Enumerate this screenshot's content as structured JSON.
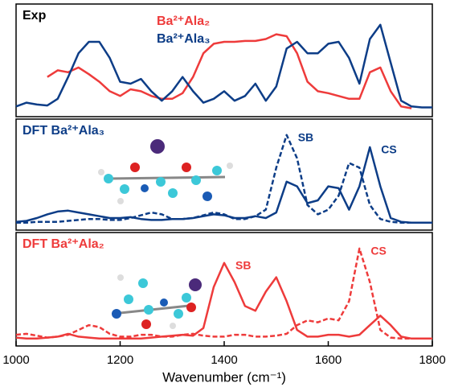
{
  "chart_data": [
    {
      "type": "line",
      "title": "Exp",
      "legend": "upper center",
      "xlim": [
        1000,
        1800
      ],
      "ylim": [
        0,
        1
      ],
      "x": [
        1000,
        1020,
        1040,
        1060,
        1080,
        1100,
        1120,
        1140,
        1160,
        1180,
        1200,
        1220,
        1240,
        1260,
        1280,
        1300,
        1320,
        1340,
        1360,
        1380,
        1400,
        1420,
        1440,
        1460,
        1480,
        1500,
        1520,
        1540,
        1560,
        1580,
        1600,
        1620,
        1640,
        1660,
        1680,
        1700,
        1720,
        1740,
        1760,
        1780,
        1800
      ],
      "series": [
        {
          "name": "Ba²⁺Ala₂",
          "color": "#ee3b3b",
          "dashed": false,
          "values": [
            null,
            null,
            null,
            0.35,
            0.42,
            0.4,
            0.45,
            0.38,
            0.3,
            0.2,
            0.15,
            0.22,
            0.2,
            0.15,
            0.12,
            0.12,
            0.18,
            0.35,
            0.6,
            0.7,
            0.72,
            0.72,
            0.73,
            0.73,
            0.75,
            0.8,
            0.78,
            0.6,
            0.3,
            0.2,
            0.18,
            0.15,
            0.12,
            0.12,
            0.4,
            0.45,
            0.2,
            0.04,
            0.02,
            null,
            null
          ]
        },
        {
          "name": "Ba²⁺Ala₃",
          "color": "#0d3d87",
          "dashed": false,
          "values": [
            0.04,
            0.08,
            0.06,
            0.05,
            0.12,
            0.35,
            0.6,
            0.72,
            0.72,
            0.55,
            0.3,
            0.28,
            0.33,
            0.2,
            0.1,
            0.2,
            0.35,
            0.2,
            0.08,
            0.12,
            0.2,
            0.1,
            0.15,
            0.28,
            0.1,
            0.25,
            0.65,
            0.72,
            0.6,
            0.6,
            0.7,
            0.72,
            0.55,
            0.28,
            0.75,
            0.9,
            0.5,
            0.1,
            0.04,
            0.03,
            0.03
          ]
        }
      ]
    },
    {
      "type": "line",
      "title": "DFT Ba²⁺Ala₃",
      "title_color": "#0d3d87",
      "xlim": [
        1000,
        1800
      ],
      "ylim": [
        0,
        1
      ],
      "x": [
        1000,
        1020,
        1040,
        1060,
        1080,
        1100,
        1120,
        1140,
        1160,
        1180,
        1200,
        1220,
        1240,
        1260,
        1280,
        1300,
        1320,
        1340,
        1360,
        1380,
        1400,
        1420,
        1440,
        1460,
        1480,
        1500,
        1520,
        1540,
        1560,
        1580,
        1600,
        1620,
        1640,
        1660,
        1680,
        1700,
        1720,
        1740,
        1760,
        1780,
        1800
      ],
      "series": [
        {
          "name": "SB",
          "color": "#0d3d87",
          "dashed": true,
          "values": [
            0.01,
            0.01,
            0.02,
            0.02,
            0.02,
            0.03,
            0.04,
            0.05,
            0.05,
            0.04,
            0.04,
            0.06,
            0.09,
            0.12,
            0.1,
            0.05,
            0.05,
            0.06,
            0.09,
            0.12,
            0.1,
            0.05,
            0.05,
            0.08,
            0.15,
            0.6,
            0.95,
            0.7,
            0.2,
            0.1,
            0.15,
            0.3,
            0.65,
            0.6,
            0.2,
            0.05,
            0.02,
            0.01,
            0.01,
            0.01,
            0.01
          ]
        },
        {
          "name": "CS",
          "color": "#0d3d87",
          "dashed": false,
          "values": [
            0.02,
            0.03,
            0.06,
            0.1,
            0.13,
            0.14,
            0.12,
            0.1,
            0.08,
            0.06,
            0.06,
            0.07,
            0.05,
            0.04,
            0.04,
            0.05,
            0.05,
            0.06,
            0.08,
            0.1,
            0.09,
            0.06,
            0.06,
            0.08,
            0.06,
            0.12,
            0.45,
            0.4,
            0.22,
            0.25,
            0.4,
            0.38,
            0.15,
            0.4,
            0.82,
            0.4,
            0.06,
            0.02,
            0.01,
            0.01,
            0.01
          ]
        }
      ]
    },
    {
      "type": "line",
      "title": "DFT Ba²⁺Ala₂",
      "title_color": "#ee3b3b",
      "xlim": [
        1000,
        1800
      ],
      "ylim": [
        0,
        1
      ],
      "xticks": [
        1000,
        1200,
        1400,
        1600,
        1800
      ],
      "xlabel": "Wavenumber  (cm⁻¹)",
      "x": [
        1000,
        1020,
        1040,
        1060,
        1080,
        1100,
        1120,
        1140,
        1160,
        1180,
        1200,
        1220,
        1240,
        1260,
        1280,
        1300,
        1320,
        1340,
        1360,
        1380,
        1400,
        1420,
        1440,
        1460,
        1480,
        1500,
        1520,
        1540,
        1560,
        1580,
        1600,
        1620,
        1640,
        1660,
        1680,
        1700,
        1720,
        1740,
        1760,
        1780,
        1800
      ],
      "series": [
        {
          "name": "SB",
          "color": "#ee3b3b",
          "dashed": false,
          "values": [
            0.02,
            0.01,
            0.01,
            0.02,
            0.03,
            0.06,
            0.03,
            0.02,
            0.01,
            0.01,
            0.01,
            0.01,
            0.01,
            0.02,
            0.03,
            0.04,
            0.05,
            0.04,
            0.12,
            0.55,
            0.8,
            0.6,
            0.35,
            0.3,
            0.5,
            0.65,
            0.4,
            0.1,
            0.03,
            0.03,
            0.05,
            0.05,
            0.03,
            0.05,
            0.15,
            0.25,
            0.15,
            0.03,
            0.01,
            0.01,
            0.01
          ]
        },
        {
          "name": "CS",
          "color": "#ee3b3b",
          "dashed": true,
          "values": [
            0.05,
            0.06,
            0.04,
            0.02,
            0.03,
            0.05,
            0.1,
            0.15,
            0.13,
            0.06,
            0.03,
            0.03,
            0.05,
            0.05,
            0.03,
            0.03,
            0.05,
            0.06,
            0.04,
            0.03,
            0.03,
            0.05,
            0.05,
            0.03,
            0.03,
            0.04,
            0.06,
            0.15,
            0.2,
            0.18,
            0.22,
            0.2,
            0.4,
            0.95,
            0.6,
            0.1,
            0.02,
            0.01,
            0.01,
            0.01,
            0.01
          ]
        }
      ]
    }
  ]
}
